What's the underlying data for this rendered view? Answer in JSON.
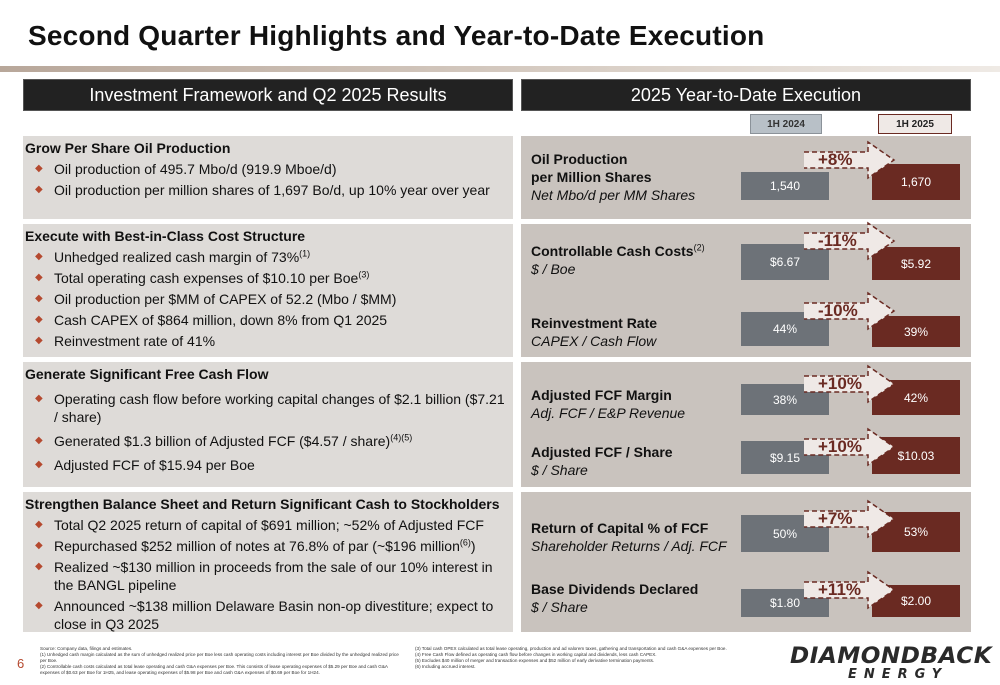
{
  "page_title": "Second Quarter Highlights and Year-to-Date Execution",
  "left_header": "Investment Framework and Q2 2025 Results",
  "right_header": "2025 Year-to-Date Execution",
  "legend": {
    "prior": "1H 2024",
    "current": "1H 2025"
  },
  "sections": [
    {
      "heading": "Grow Per Share Oil Production",
      "bullets": [
        "Oil production of 495.7 Mbo/d (919.9 Mboe/d)",
        "Oil production per million shares of 1,697 Bo/d, up 10% year over year"
      ]
    },
    {
      "heading": "Execute with Best-in-Class Cost Structure",
      "bullets": [
        "Unhedged realized cash margin of 73%",
        "Total operating cash expenses of $10.10 per Boe",
        "Oil production per $MM of CAPEX of 52.2 (Mbo / $MM)",
        "Cash CAPEX of $864 million, down 8% from Q1 2025",
        "Reinvestment rate of 41%"
      ],
      "sups": [
        "(1)",
        "(3)"
      ]
    },
    {
      "heading": "Generate Significant Free Cash Flow",
      "bullets": [
        "Operating cash flow before working capital changes of $2.1 billion ($7.21 / share)",
        "Generated $1.3 billion of Adjusted FCF ($4.57 / share)",
        "Adjusted FCF of $15.94 per Boe"
      ],
      "sups": [
        "(4)(5)"
      ]
    },
    {
      "heading": "Strengthen Balance Sheet and Return Significant Cash to Stockholders",
      "bullets": [
        "Total Q2 2025 return of capital of $691 million; ~52% of Adjusted FCF",
        "Repurchased $252 million of notes at 76.8% of par (~$196 million",
        "Realized ~$130 million in proceeds from the sale of our 10% interest in the BANGL pipeline",
        "Announced ~$138 million Delaware Basin non-op divestiture; expect to close in Q3 2025"
      ],
      "sups": [
        "(6)"
      ],
      "close_paren": ")"
    }
  ],
  "metrics": [
    {
      "label": "Oil Production per Million Shares",
      "sub": "Net Mbo/d per MM Shares",
      "prior": "1,540",
      "current": "1,670",
      "change": "+8%"
    },
    {
      "label": "Controllable Cash Costs",
      "sup": "(2)",
      "sub": "$ / Boe",
      "prior": "$6.67",
      "current": "$5.92",
      "change": "-11%"
    },
    {
      "label": "Reinvestment Rate",
      "sub": "CAPEX / Cash Flow",
      "prior": "44%",
      "current": "39%",
      "change": "-10%"
    },
    {
      "label": "Adjusted FCF Margin",
      "sub": "Adj. FCF / E&P Revenue",
      "prior": "38%",
      "current": "42%",
      "change": "+10%"
    },
    {
      "label": "Adjusted FCF / Share",
      "sub": "$ / Share",
      "prior": "$9.15",
      "current": "$10.03",
      "change": "+10%"
    },
    {
      "label": "Return of Capital % of FCF",
      "sub": "Shareholder Returns / Adj. FCF",
      "prior": "50%",
      "current": "53%",
      "change": "+7%"
    },
    {
      "label": "Base Dividends Declared",
      "sub": "$ / Share",
      "prior": "$1.80",
      "current": "$2.00",
      "change": "+11%"
    }
  ],
  "metric_label_lines": {
    "m0_line1": "Oil Production",
    "m0_line2": "per Million Shares"
  },
  "footnotes": {
    "source": "Source: Company data, filings and estimates.",
    "n1": "(1)   Unhedged cash margin calculated as the sum of unhedged realized price per Boe less cash operating costs including interest per Boe divided by the unhedged realized price per Boe.",
    "n2": "(2)   Controllable cash costs calculated as total lease operating and cash G&A expenses per Boe. This consists of lease operating expenses of $5.29 per Boe and cash G&A expenses of $0.63 per Boe for 1H25, and lease operating expenses of $5.98 per Boe and cash G&A expenses of $0.69 per Boe for 1H24.",
    "n3": "(3)   Total cash OPEX calculated as total lease operating, production and ad valorem taxes, gathering and transportation and cash G&A expenses per Boe.",
    "n4": "(4)   Free Cash Flow defined as operating cash flow before changes in working capital and dividends, less cash CAPEX.",
    "n5": "(5)   Excludes $40 million of merger and transaction expenses and $52 million of early derivative termination payments.",
    "n6": "(6)   Including accrued interest."
  },
  "page_number": "6",
  "logo": {
    "line1": "DIAMONDBACK",
    "line2": "ENERGY"
  },
  "colors": {
    "accent": "#6a2a22",
    "gray_bar": "#6d7278",
    "bullet": "#b5492f"
  }
}
